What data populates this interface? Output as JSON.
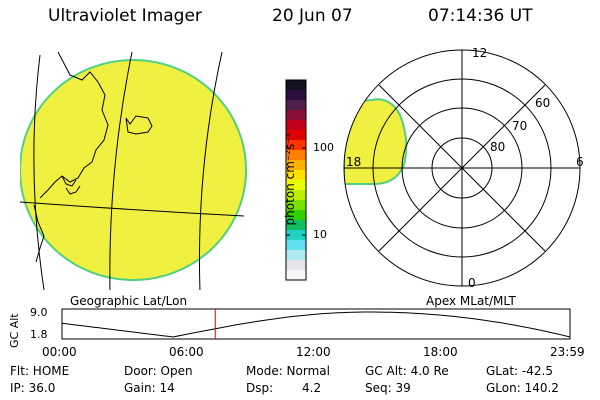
{
  "header": {
    "title": "Ultraviolet Imager",
    "date": "20 Jun 07",
    "time": "07:14:36 UT"
  },
  "colorbar": {
    "label": "photon cm⁻²s⁻¹",
    "ticks": [
      "100",
      "10"
    ],
    "colors": [
      "#111122",
      "#2a0f40",
      "#50204a",
      "#8a103a",
      "#c00018",
      "#e00000",
      "#ff3300",
      "#ff7f00",
      "#ffb000",
      "#ffe000",
      "#e8ff00",
      "#b8f000",
      "#78e000",
      "#30d000",
      "#10c060",
      "#20d0c0",
      "#60e0f0",
      "#b0e8f0",
      "#e4e4e8",
      "#f8f8f8"
    ]
  },
  "geo_panel": {
    "label": "Geographic Lat/Lon"
  },
  "polar_panel": {
    "label": "Apex MLat/MLT",
    "mlt_labels": [
      "12",
      "18",
      "6",
      "0"
    ],
    "mlat_labels": [
      "60",
      "70",
      "80"
    ]
  },
  "altitude_plot": {
    "ylabel": "GC Alt",
    "yticks": [
      "9.0",
      "1.8"
    ],
    "xticks": [
      "00:00",
      "06:00",
      "12:00",
      "18:00",
      "23:59"
    ],
    "current_time_hours": 7.24
  },
  "status": {
    "flt": "Flt: HOME",
    "ip": "IP: 36.0",
    "door": "Door: Open",
    "gain": "Gain: 14",
    "mode": "Mode: Normal",
    "dsp_label": "Dsp:",
    "dsp_value": "4.2",
    "gc_alt": "GC Alt: 4.0 Re",
    "seq": "Seq: 39",
    "glat": "GLat: -42.5",
    "glon": "GLon: 140.2"
  },
  "colors": {
    "fill": "#f0f040",
    "rim": "#50d080",
    "marker": "#dd0000"
  }
}
